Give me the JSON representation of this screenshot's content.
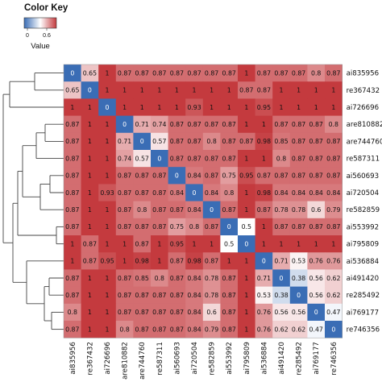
{
  "chart_data": {
    "type": "heatmap",
    "color_key": {
      "title": "Color Key",
      "axis_label": "Value",
      "ticks": [
        "0",
        "0.6"
      ],
      "range": [
        0,
        1
      ]
    },
    "colors": {
      "low": "#3a6db5",
      "mid": "#ffffff",
      "high": "#c43a3e",
      "line": "#444444"
    },
    "row_labels": [
      "ai835956",
      "re367432",
      "ai726696",
      "are810882",
      "are744760",
      "re587311",
      "ai560693",
      "ai720504",
      "re582859",
      "ai553992",
      "ai795809",
      "ai536884",
      "ai491420",
      "re285492",
      "ai769177",
      "re746356"
    ],
    "col_labels": [
      "ai835956",
      "re367432",
      "ai726696",
      "are810882",
      "are744760",
      "re587311",
      "ai560693",
      "ai720504",
      "re582859",
      "ai553992",
      "ai795809",
      "ai536884",
      "ai491420",
      "re285492",
      "ai769177",
      "re746356"
    ],
    "values": [
      [
        0,
        0.65,
        1,
        0.87,
        0.87,
        0.87,
        0.87,
        0.87,
        0.87,
        0.87,
        1,
        0.87,
        0.87,
        0.87,
        0.8,
        0.87
      ],
      [
        0.65,
        0,
        1,
        1,
        1,
        1,
        1,
        1,
        1,
        1,
        0.87,
        0.87,
        1,
        1,
        1,
        1
      ],
      [
        1,
        1,
        0,
        1,
        1,
        1,
        1,
        0.93,
        1,
        1,
        1,
        0.95,
        1,
        1,
        1,
        1
      ],
      [
        0.87,
        1,
        1,
        0,
        0.71,
        0.74,
        0.87,
        0.87,
        0.87,
        0.87,
        1,
        1,
        0.87,
        0.87,
        0.87,
        0.8
      ],
      [
        0.87,
        1,
        1,
        0.71,
        0,
        0.57,
        0.87,
        0.87,
        0.8,
        0.87,
        0.87,
        0.98,
        0.85,
        0.87,
        0.87,
        0.87
      ],
      [
        0.87,
        1,
        1,
        0.74,
        0.57,
        0,
        0.87,
        0.87,
        0.87,
        0.87,
        1,
        1,
        0.8,
        0.87,
        0.87,
        0.87
      ],
      [
        0.87,
        1,
        1,
        0.87,
        0.87,
        0.87,
        0,
        0.84,
        0.87,
        0.75,
        0.95,
        0.87,
        0.87,
        0.87,
        0.87,
        0.87
      ],
      [
        0.87,
        1,
        0.93,
        0.87,
        0.87,
        0.87,
        0.84,
        0,
        0.84,
        0.8,
        1,
        0.98,
        0.84,
        0.84,
        0.84,
        0.84
      ],
      [
        0.87,
        1,
        1,
        0.87,
        0.8,
        0.87,
        0.87,
        0.84,
        0,
        0.87,
        1,
        0.87,
        0.78,
        0.78,
        0.6,
        0.79
      ],
      [
        0.87,
        1,
        1,
        0.87,
        0.87,
        0.87,
        0.75,
        0.8,
        0.87,
        0,
        0.5,
        1,
        0.87,
        0.87,
        0.87,
        0.87
      ],
      [
        1,
        0.87,
        1,
        1,
        0.87,
        1,
        0.95,
        1,
        1,
        0.5,
        0,
        1,
        1,
        1,
        1,
        1
      ],
      [
        1,
        0.87,
        0.95,
        1,
        0.98,
        1,
        0.87,
        0.98,
        0.87,
        1,
        1,
        0,
        0.71,
        0.53,
        0.76,
        0.76
      ],
      [
        0.87,
        1,
        1,
        0.87,
        0.85,
        0.8,
        0.87,
        0.84,
        0.78,
        0.87,
        1,
        0.71,
        0,
        0.38,
        0.56,
        0.62
      ],
      [
        0.87,
        1,
        1,
        0.87,
        0.87,
        0.87,
        0.87,
        0.84,
        0.78,
        0.87,
        1,
        0.53,
        0.38,
        0,
        0.56,
        0.62
      ],
      [
        0.8,
        1,
        1,
        0.87,
        0.87,
        0.87,
        0.87,
        0.84,
        0.6,
        0.87,
        1,
        0.76,
        0.56,
        0.56,
        0,
        0.47
      ],
      [
        0.87,
        1,
        1,
        0.8,
        0.87,
        0.87,
        0.87,
        0.84,
        0.79,
        0.87,
        1,
        0.76,
        0.62,
        0.62,
        0.47,
        0
      ]
    ]
  }
}
